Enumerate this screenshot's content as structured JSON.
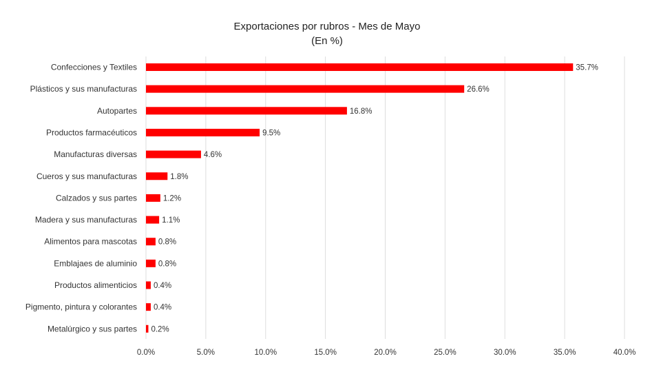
{
  "chart_data": {
    "type": "bar",
    "orientation": "horizontal",
    "title": "Exportaciones por rubros - Mes de Mayo",
    "subtitle": "(En %)",
    "categories": [
      "Confecciones y Textiles",
      "Plásticos y sus manufacturas",
      "Autopartes",
      "Productos farmacéuticos",
      "Manufacturas diversas",
      "Cueros y sus manufacturas",
      "Calzados y sus partes",
      "Madera y sus manufacturas",
      "Alimentos para mascotas",
      "Emblajaes de aluminio",
      "Productos alimenticios",
      "Pigmento, pintura y colorantes",
      "Metalúrgico y sus partes"
    ],
    "values": [
      35.7,
      26.6,
      16.8,
      9.5,
      4.6,
      1.8,
      1.2,
      1.1,
      0.8,
      0.8,
      0.4,
      0.4,
      0.2
    ],
    "value_labels": [
      "35.7%",
      "26.6%",
      "16.8%",
      "9.5%",
      "4.6%",
      "1.8%",
      "1.2%",
      "1.1%",
      "0.8%",
      "0.8%",
      "0.4%",
      "0.4%",
      "0.2%"
    ],
    "xlim": [
      0,
      40
    ],
    "xticks": [
      0,
      5,
      10,
      15,
      20,
      25,
      30,
      35,
      40
    ],
    "xtick_labels": [
      "0.0%",
      "5.0%",
      "10.0%",
      "15.0%",
      "20.0%",
      "25.0%",
      "30.0%",
      "35.0%",
      "40.0%"
    ],
    "bar_color": "#ff0000",
    "grid": true,
    "legend": "none"
  }
}
